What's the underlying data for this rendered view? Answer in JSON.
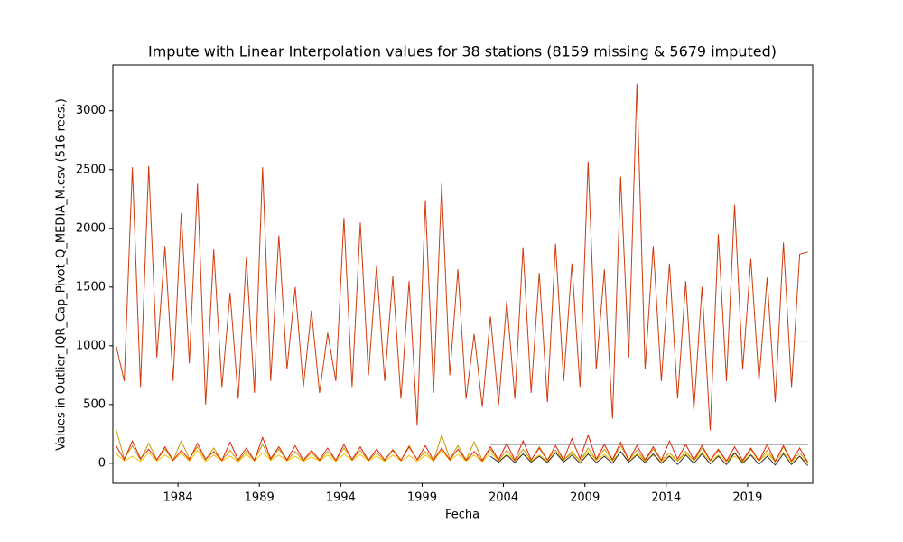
{
  "chart_data": {
    "type": "line",
    "title": "Impute with Linear Interpolation values for 38 stations (8159 missing & 5679 imputed)",
    "x_label": "Fecha",
    "y_label": "Values in Outlier_IQR_Cap_Pivot_Q_MEDIA_M.csv (516 recs.)",
    "xlim": [
      1980,
      2023
    ],
    "ylim": [
      -170,
      3390
    ],
    "xticks": [
      1984,
      1989,
      1994,
      1999,
      2004,
      2009,
      2014,
      2019
    ],
    "yticks": [
      0,
      500,
      1000,
      1500,
      2000,
      2500,
      3000
    ],
    "grid": false,
    "x": [
      1980.2,
      1980.7,
      1981.2,
      1981.7,
      1982.2,
      1982.7,
      1983.2,
      1983.7,
      1984.2,
      1984.7,
      1985.2,
      1985.7,
      1986.2,
      1986.7,
      1987.2,
      1987.7,
      1988.2,
      1988.7,
      1989.2,
      1989.7,
      1990.2,
      1990.7,
      1991.2,
      1991.7,
      1992.2,
      1992.7,
      1993.2,
      1993.7,
      1994.2,
      1994.7,
      1995.2,
      1995.7,
      1996.2,
      1996.7,
      1997.2,
      1997.7,
      1998.2,
      1998.7,
      1999.2,
      1999.7,
      2000.2,
      2000.7,
      2001.2,
      2001.7,
      2002.2,
      2002.7,
      2003.2,
      2003.7,
      2004.2,
      2004.7,
      2005.2,
      2005.7,
      2006.2,
      2006.7,
      2007.2,
      2007.7,
      2008.2,
      2008.7,
      2009.2,
      2009.7,
      2010.2,
      2010.7,
      2011.2,
      2011.7,
      2012.2,
      2012.7,
      2013.2,
      2013.7,
      2014.2,
      2014.7,
      2015.2,
      2015.7,
      2016.2,
      2016.7,
      2017.2,
      2017.7,
      2018.2,
      2018.7,
      2019.2,
      2019.7,
      2020.2,
      2020.7,
      2021.2,
      2021.7,
      2022.2,
      2022.7
    ],
    "series": [
      {
        "color": "#808080",
        "values": [
          null,
          null,
          null,
          null,
          null,
          null,
          null,
          null,
          null,
          null,
          null,
          null,
          null,
          null,
          null,
          null,
          null,
          null,
          null,
          null,
          null,
          null,
          null,
          null,
          null,
          null,
          null,
          null,
          null,
          null,
          null,
          null,
          null,
          null,
          null,
          null,
          null,
          null,
          null,
          null,
          null,
          null,
          null,
          null,
          null,
          null,
          null,
          null,
          null,
          null,
          null,
          null,
          null,
          null,
          null,
          null,
          null,
          null,
          null,
          null,
          null,
          null,
          null,
          null,
          null,
          null,
          null,
          1040,
          1040,
          1040,
          1040,
          1040,
          1040,
          1040,
          1040,
          1040,
          1040,
          1040,
          1040,
          1040,
          1040,
          1040,
          1040,
          1040,
          1040,
          1040
        ]
      },
      {
        "color": "#d03a0a",
        "values": [
          1000,
          700,
          2520,
          650,
          2530,
          900,
          1850,
          700,
          2130,
          850,
          2380,
          500,
          1820,
          650,
          1450,
          550,
          1750,
          600,
          2520,
          700,
          1940,
          800,
          1500,
          650,
          1300,
          600,
          1110,
          700,
          2090,
          650,
          2050,
          750,
          1680,
          700,
          1590,
          550,
          1550,
          320,
          2240,
          600,
          2380,
          750,
          1650,
          550,
          1100,
          480,
          1250,
          500,
          1380,
          550,
          1840,
          600,
          1620,
          520,
          1870,
          700,
          1700,
          650,
          2570,
          800,
          1650,
          380,
          2440,
          900,
          3230,
          800,
          1850,
          700,
          1700,
          550,
          1550,
          450,
          1500,
          280,
          1950,
          700,
          2200,
          800,
          1740,
          700,
          1580,
          520,
          1880,
          650,
          1780,
          1800
        ]
      },
      {
        "color": "#f5c400",
        "values": [
          80,
          20,
          60,
          15,
          90,
          20,
          70,
          25,
          85,
          20,
          110,
          15,
          70,
          20,
          60,
          15,
          75,
          20,
          90,
          25,
          70,
          20,
          60,
          15,
          55,
          20,
          70,
          15,
          80,
          25,
          75,
          20,
          60,
          15,
          70,
          20,
          65,
          15,
          70,
          20,
          110,
          25,
          75,
          20,
          70,
          15,
          90,
          20,
          75,
          25,
          80,
          20,
          70,
          15,
          90,
          25,
          85,
          20,
          100,
          25,
          75,
          20,
          95,
          25,
          80,
          20,
          70,
          15,
          65,
          20,
          80,
          25,
          90,
          20,
          70,
          15,
          60,
          10,
          75,
          20,
          80,
          15,
          95,
          10,
          60,
          5
        ]
      },
      {
        "color": "#c89b00",
        "values": [
          290,
          40,
          150,
          30,
          170,
          30,
          120,
          25,
          190,
          40,
          140,
          30,
          130,
          25,
          110,
          20,
          100,
          30,
          160,
          30,
          120,
          25,
          100,
          20,
          90,
          20,
          100,
          25,
          130,
          30,
          110,
          25,
          90,
          20,
          120,
          25,
          150,
          30,
          100,
          20,
          240,
          40,
          150,
          30,
          180,
          30,
          120,
          25,
          110,
          20,
          120,
          25,
          140,
          30,
          110,
          25,
          100,
          20,
          130,
          30,
          120,
          25,
          150,
          30,
          110,
          20,
          120,
          25,
          90,
          20,
          100,
          20,
          130,
          25,
          110,
          20,
          90,
          15,
          120,
          20,
          110,
          15,
          140,
          20,
          90,
          10
        ]
      },
      {
        "color": "#e8200a",
        "values": [
          150,
          30,
          190,
          40,
          120,
          30,
          140,
          25,
          110,
          30,
          170,
          35,
          100,
          25,
          180,
          30,
          130,
          25,
          220,
          40,
          140,
          30,
          150,
          25,
          110,
          30,
          130,
          25,
          160,
          30,
          140,
          25,
          120,
          30,
          110,
          25,
          140,
          30,
          150,
          25,
          130,
          30,
          120,
          25,
          100,
          20,
          140,
          30,
          170,
          25,
          190,
          30,
          130,
          25,
          150,
          30,
          210,
          40,
          240,
          35,
          160,
          30,
          180,
          25,
          150,
          30,
          140,
          25,
          190,
          35,
          160,
          30,
          150,
          25,
          120,
          20,
          140,
          25,
          130,
          20,
          160,
          15,
          150,
          20,
          130,
          10
        ]
      },
      {
        "color": "#808080",
        "values": [
          null,
          null,
          null,
          null,
          null,
          null,
          null,
          null,
          null,
          null,
          null,
          null,
          null,
          null,
          null,
          null,
          null,
          null,
          null,
          null,
          null,
          null,
          null,
          null,
          null,
          null,
          null,
          null,
          null,
          null,
          null,
          null,
          null,
          null,
          null,
          null,
          null,
          null,
          null,
          null,
          null,
          null,
          null,
          null,
          null,
          null,
          160,
          160,
          160,
          160,
          160,
          160,
          160,
          160,
          160,
          160,
          160,
          160,
          160,
          160,
          160,
          160,
          160,
          160,
          160,
          160,
          160,
          160,
          160,
          160,
          160,
          160,
          160,
          160,
          160,
          160,
          160,
          160,
          160,
          160,
          160,
          160,
          160,
          160,
          160,
          160
        ]
      },
      {
        "color": "#303030",
        "values": [
          null,
          null,
          null,
          null,
          null,
          null,
          null,
          null,
          null,
          null,
          null,
          null,
          null,
          null,
          null,
          null,
          null,
          null,
          null,
          null,
          null,
          null,
          null,
          null,
          null,
          null,
          null,
          null,
          null,
          null,
          null,
          null,
          null,
          null,
          null,
          null,
          null,
          null,
          null,
          null,
          null,
          null,
          null,
          null,
          null,
          null,
          60,
          10,
          70,
          5,
          80,
          10,
          60,
          5,
          90,
          10,
          70,
          0,
          80,
          5,
          60,
          0,
          100,
          10,
          70,
          5,
          80,
          0,
          60,
          -10,
          70,
          0,
          80,
          -5,
          60,
          -10,
          90,
          0,
          70,
          -10,
          60,
          -15,
          80,
          -10,
          60,
          -20
        ]
      }
    ]
  }
}
